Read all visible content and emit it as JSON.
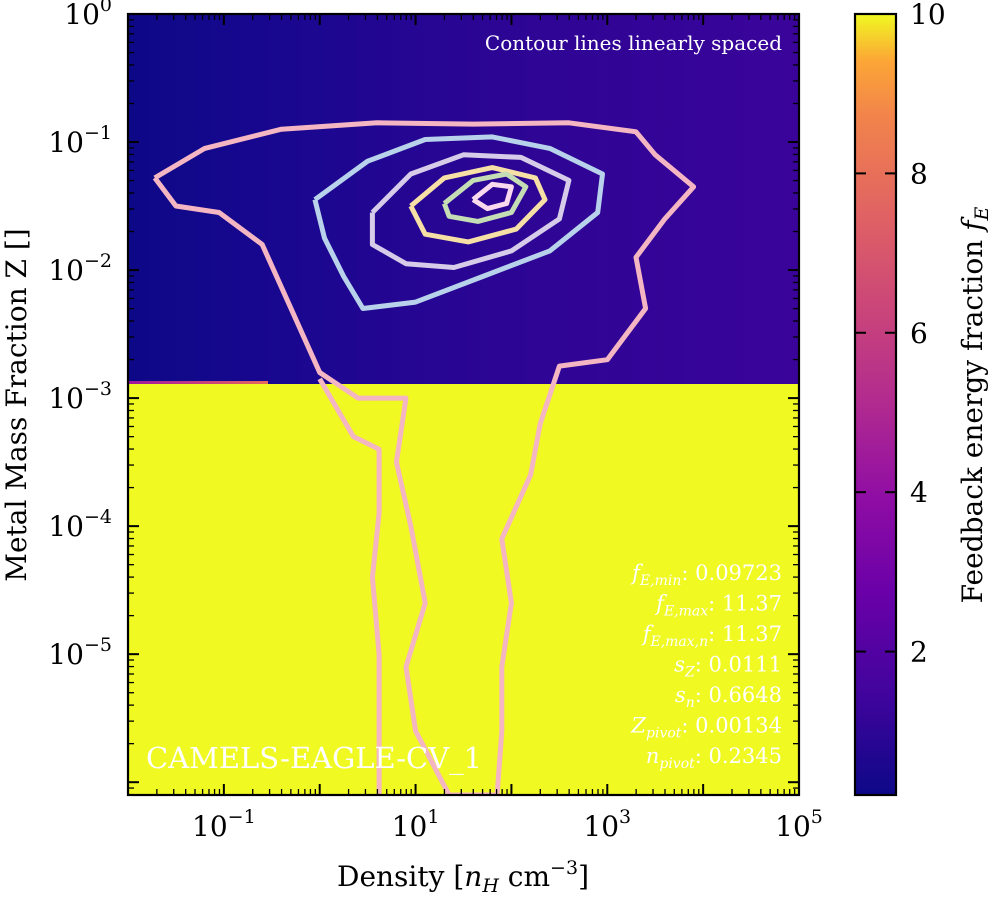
{
  "chart_data": {
    "type": "heatmap",
    "annotation_top": "Contour lines linearly spaced",
    "simulation_label": "CAMELS-EAGLE-CV_1",
    "xlabel": "Density [n_H cm^-3]",
    "ylabel": "Metal Mass Fraction Z []",
    "x_scale": "log",
    "y_scale": "log",
    "xlim_log10": [
      -2.0,
      5.0
    ],
    "ylim_log10": [
      -6.1,
      0.0
    ],
    "x_ticks": [
      {
        "exp": -1,
        "base": "10",
        "sup": "−1"
      },
      {
        "exp": 1,
        "base": "10",
        "sup": "1"
      },
      {
        "exp": 3,
        "base": "10",
        "sup": "3"
      },
      {
        "exp": 5,
        "base": "10",
        "sup": "5"
      }
    ],
    "y_ticks": [
      {
        "exp": 0,
        "base": "10",
        "sup": "0"
      },
      {
        "exp": -1,
        "base": "10",
        "sup": "−1"
      },
      {
        "exp": -2,
        "base": "10",
        "sup": "−2"
      },
      {
        "exp": -3,
        "base": "10",
        "sup": "−3"
      },
      {
        "exp": -4,
        "base": "10",
        "sup": "−4"
      },
      {
        "exp": -5,
        "base": "10",
        "sup": "−5"
      }
    ],
    "background": {
      "z_threshold": 0.00134,
      "value_above_threshold_low_density": 0.35,
      "value_above_threshold_high_density": 1.6,
      "value_below_threshold": 10.0
    },
    "colorbar": {
      "label": "Feedback energy fraction f_E",
      "range": [
        0.2,
        10
      ],
      "ticks": [
        "2",
        "4",
        "6",
        "8",
        "10"
      ],
      "tick_values": [
        2,
        4,
        6,
        8,
        10
      ],
      "colormap": "plasma"
    },
    "parameters": [
      {
        "sym": "f",
        "sub": "E,min",
        "value": "0.09723"
      },
      {
        "sym": "f",
        "sub": "E,max",
        "value": "11.37"
      },
      {
        "sym": "f",
        "sub": "E,max,n",
        "value": "11.37"
      },
      {
        "sym": "s",
        "sub": "Z",
        "value": "0.0111"
      },
      {
        "sym": "s",
        "sub": "n",
        "value": "0.6648"
      },
      {
        "sym": "Z",
        "sub": "pivot",
        "value": "0.00134"
      },
      {
        "sym": "n",
        "sub": "pivot",
        "value": "0.2345"
      }
    ],
    "contours": [
      {
        "level": 1,
        "color": "#f4b6c2",
        "points": [
          [
            -1.72,
            -1.28
          ],
          [
            -1.2,
            -1.05
          ],
          [
            -0.4,
            -0.9
          ],
          [
            0.6,
            -0.85
          ],
          [
            1.6,
            -0.86
          ],
          [
            2.6,
            -0.85
          ],
          [
            3.3,
            -0.92
          ],
          [
            3.5,
            -1.1
          ],
          [
            3.9,
            -1.35
          ],
          [
            3.6,
            -1.6
          ],
          [
            3.3,
            -1.9
          ],
          [
            3.4,
            -2.3
          ],
          [
            3.0,
            -2.7
          ],
          [
            2.5,
            -2.75
          ],
          [
            2.3,
            -3.2
          ],
          [
            2.2,
            -3.6
          ],
          [
            1.9,
            -4.1
          ],
          [
            2.0,
            -4.6
          ],
          [
            1.9,
            -5.1
          ],
          [
            1.9,
            -5.6
          ],
          [
            1.85,
            -6.1
          ],
          [
            1.35,
            -6.1
          ],
          [
            1.0,
            -5.6
          ],
          [
            0.9,
            -5.1
          ],
          [
            1.1,
            -4.6
          ],
          [
            0.95,
            -4.0
          ],
          [
            0.8,
            -3.5
          ],
          [
            0.9,
            -3.0
          ],
          [
            0.4,
            -3.0
          ],
          [
            0.0,
            -2.8
          ],
          [
            -0.3,
            -2.3
          ],
          [
            -0.6,
            -1.8
          ],
          [
            -1.05,
            -1.55
          ],
          [
            -1.5,
            -1.5
          ],
          [
            -1.72,
            -1.28
          ]
        ]
      },
      {
        "level": 1,
        "color": "#f4b6c2",
        "points": [
          [
            0.0,
            -2.85
          ],
          [
            0.35,
            -3.3
          ],
          [
            0.62,
            -3.4
          ],
          [
            0.62,
            -3.9
          ],
          [
            0.55,
            -4.4
          ],
          [
            0.62,
            -5.0
          ],
          [
            0.62,
            -6.1
          ]
        ]
      },
      {
        "level": 2,
        "color": "#b7d2ea",
        "points": [
          [
            -0.05,
            -1.45
          ],
          [
            0.5,
            -1.15
          ],
          [
            1.1,
            -0.98
          ],
          [
            1.8,
            -0.96
          ],
          [
            2.4,
            -1.05
          ],
          [
            2.95,
            -1.25
          ],
          [
            2.9,
            -1.55
          ],
          [
            2.4,
            -1.85
          ],
          [
            1.7,
            -2.05
          ],
          [
            1.0,
            -2.25
          ],
          [
            0.45,
            -2.3
          ],
          [
            0.25,
            -2.05
          ],
          [
            0.05,
            -1.75
          ],
          [
            -0.05,
            -1.45
          ]
        ]
      },
      {
        "level": 3,
        "color": "#d6cbe8",
        "points": [
          [
            0.55,
            -1.55
          ],
          [
            0.95,
            -1.25
          ],
          [
            1.5,
            -1.1
          ],
          [
            2.1,
            -1.12
          ],
          [
            2.6,
            -1.3
          ],
          [
            2.5,
            -1.6
          ],
          [
            2.0,
            -1.85
          ],
          [
            1.4,
            -1.98
          ],
          [
            0.9,
            -1.95
          ],
          [
            0.55,
            -1.8
          ],
          [
            0.55,
            -1.55
          ]
        ]
      },
      {
        "level": 4,
        "color": "#f6e0a6",
        "points": [
          [
            0.95,
            -1.5
          ],
          [
            1.3,
            -1.28
          ],
          [
            1.8,
            -1.2
          ],
          [
            2.25,
            -1.28
          ],
          [
            2.35,
            -1.45
          ],
          [
            2.05,
            -1.68
          ],
          [
            1.55,
            -1.78
          ],
          [
            1.1,
            -1.72
          ],
          [
            0.95,
            -1.5
          ]
        ]
      },
      {
        "level": 5,
        "color": "#c5ddb5",
        "points": [
          [
            1.3,
            -1.48
          ],
          [
            1.6,
            -1.3
          ],
          [
            1.95,
            -1.25
          ],
          [
            2.15,
            -1.35
          ],
          [
            2.0,
            -1.55
          ],
          [
            1.65,
            -1.62
          ],
          [
            1.35,
            -1.58
          ],
          [
            1.3,
            -1.48
          ]
        ]
      },
      {
        "level": 6,
        "color": "#f9d9ee",
        "points": [
          [
            1.6,
            -1.45
          ],
          [
            1.8,
            -1.33
          ],
          [
            2.0,
            -1.35
          ],
          [
            1.95,
            -1.48
          ],
          [
            1.75,
            -1.52
          ],
          [
            1.6,
            -1.45
          ]
        ]
      }
    ]
  }
}
